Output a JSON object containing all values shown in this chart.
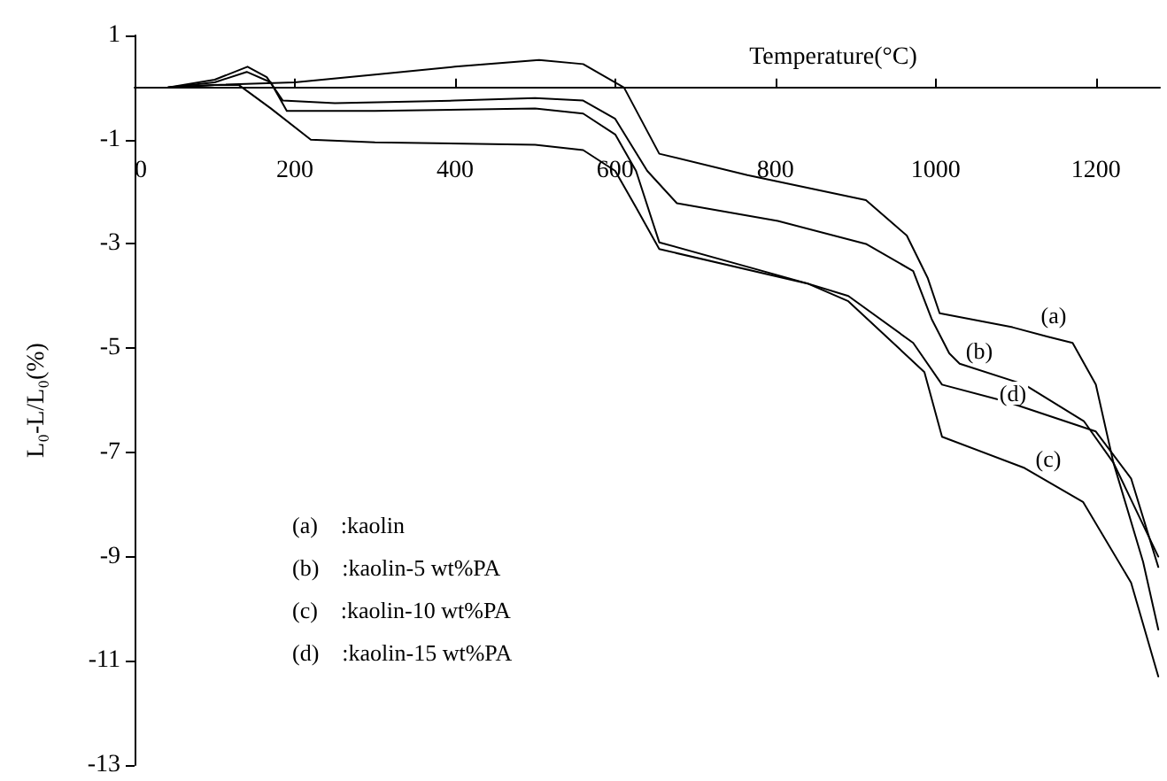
{
  "chart_data": {
    "type": "line",
    "xlabel": "Temperature(°C)",
    "ylabel": "L₀-L/L₀(%)",
    "xlim": [
      0,
      1280
    ],
    "xticks": [
      0,
      200,
      400,
      600,
      800,
      1000,
      1200
    ],
    "ylim": [
      -13,
      1
    ],
    "yticks": [
      -13,
      -11,
      -9,
      -7,
      -5,
      -3,
      -1,
      1
    ],
    "grid": false,
    "marker": "none",
    "line_style": "solid",
    "series": [
      {
        "color": "#000000",
        "x": [
          42,
          100,
          200,
          300,
          400,
          505,
          560,
          611,
          655,
          765,
          913,
          964,
          990,
          1005,
          1096,
          1140,
          1171,
          1200,
          1222,
          1259,
          1278
        ],
        "values": [
          0,
          0.05,
          0.1,
          0.25,
          0.4,
          0.53,
          0.45,
          0,
          -1.27,
          -1.68,
          -2.16,
          -2.84,
          -3.65,
          -4.33,
          -4.6,
          -4.78,
          -4.9,
          -5.7,
          -7.2,
          -9.1,
          -10.4
        ]
      },
      {
        "color": "#000000",
        "x": [
          42,
          100,
          141,
          165,
          185,
          250,
          400,
          500,
          560,
          600,
          640,
          677,
          803,
          913,
          972,
          995,
          1017,
          1030,
          1111,
          1185,
          1222,
          1278
        ],
        "values": [
          0,
          0.15,
          0.4,
          0.2,
          -0.25,
          -0.3,
          -0.25,
          -0.2,
          -0.25,
          -0.6,
          -1.6,
          -2.22,
          -2.56,
          -3.0,
          -3.52,
          -4.44,
          -5.1,
          -5.3,
          -5.7,
          -6.4,
          -7.2,
          -9.0
        ]
      },
      {
        "color": "#000000",
        "x": [
          42,
          100,
          130,
          170,
          220,
          300,
          500,
          560,
          600,
          626,
          655,
          840,
          891,
          986,
          1008,
          1111,
          1184,
          1244,
          1278
        ],
        "values": [
          0,
          0.05,
          0.05,
          -0.4,
          -1.0,
          -1.05,
          -1.1,
          -1.2,
          -1.6,
          -2.3,
          -3.1,
          -3.76,
          -4.1,
          -5.46,
          -6.7,
          -7.3,
          -7.95,
          -9.5,
          -11.3
        ]
      },
      {
        "color": "#000000",
        "x": [
          42,
          100,
          140,
          170,
          190,
          300,
          500,
          560,
          600,
          626,
          655,
          840,
          891,
          972,
          1008,
          1089,
          1200,
          1244,
          1278
        ],
        "values": [
          0,
          0.1,
          0.3,
          0.1,
          -0.45,
          -0.45,
          -0.4,
          -0.5,
          -0.9,
          -1.6,
          -2.97,
          -3.76,
          -4.0,
          -4.9,
          -5.7,
          -6.03,
          -6.6,
          -7.5,
          -9.2
        ]
      }
    ],
    "annotations": [
      "(a)",
      "(b)",
      "(c)",
      "(d)",
      "(a)    :kaolin",
      "(b)    :kaolin-5 wt%PA",
      "(c)    :kaolin-10 wt%PA",
      "(d)    :kaolin-15 wt%PA"
    ]
  }
}
